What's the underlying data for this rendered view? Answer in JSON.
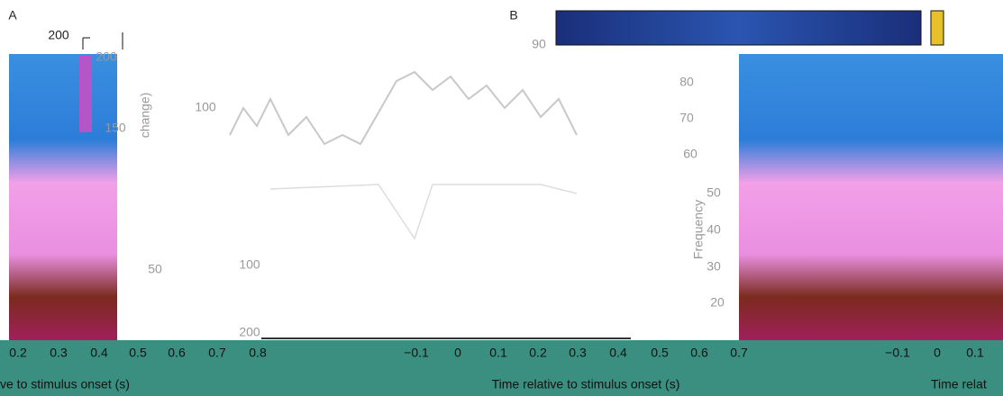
{
  "panel_labels": [
    "A",
    "B"
  ],
  "left_scale": {
    "top": "200",
    "ticks": [
      "200",
      "150",
      "50"
    ]
  },
  "middle_axis": {
    "ticks": [
      "100",
      "100",
      "200"
    ],
    "label": "change)"
  },
  "frequency_axis": {
    "ticks": [
      "90",
      "80",
      "70",
      "60",
      "50",
      "40",
      "30",
      "20"
    ],
    "label": "Frequency"
  },
  "x_ticks": {
    "left": [
      "0.2",
      "0.3",
      "0.4",
      "0.5",
      "0.6",
      "0.7",
      "0.8"
    ],
    "middle": [
      "−0.1",
      "0",
      "0.1",
      "0.2",
      "0.3",
      "0.4",
      "0.5",
      "0.6",
      "0.7"
    ],
    "right": [
      "−0.1",
      "0",
      "0.1"
    ]
  },
  "x_labels": [
    "ve to stimulus onset (s)",
    "Time relative to stimulus onset (s)",
    "Time relat"
  ]
}
